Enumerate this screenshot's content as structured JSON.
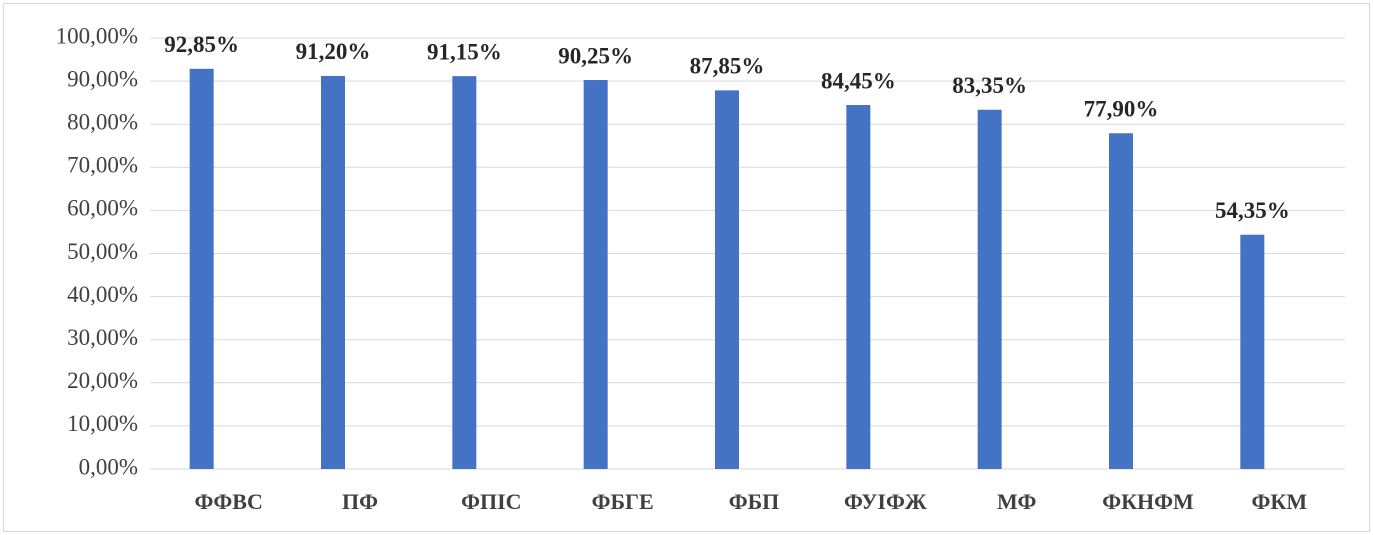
{
  "chart_data": {
    "type": "bar",
    "categories": [
      "ФФВС",
      "ПФ",
      "ФПІС",
      "ФБГЕ",
      "ФБП",
      "ФУІФЖ",
      "МФ",
      "ФКНФМ",
      "ФКМ"
    ],
    "values": [
      92.85,
      91.2,
      91.15,
      90.25,
      87.85,
      84.45,
      83.35,
      77.9,
      54.35
    ],
    "value_labels": [
      "92,85%",
      "91,20%",
      "91,15%",
      "90,25%",
      "87,85%",
      "84,45%",
      "83,35%",
      "77,90%",
      "54,35%"
    ],
    "color": "#4472c4",
    "ylim": [
      0,
      100
    ],
    "yticks": [
      {
        "value": 0,
        "label": "0,00%"
      },
      {
        "value": 10,
        "label": "10,00%"
      },
      {
        "value": 20,
        "label": "20,00%"
      },
      {
        "value": 30,
        "label": "30,00%"
      },
      {
        "value": 40,
        "label": "40,00%"
      },
      {
        "value": 50,
        "label": "50,00%"
      },
      {
        "value": 60,
        "label": "60,00%"
      },
      {
        "value": 70,
        "label": "70,00%"
      },
      {
        "value": 80,
        "label": "80,00%"
      },
      {
        "value": 90,
        "label": "90,00%"
      },
      {
        "value": 100,
        "label": "100,00%"
      }
    ],
    "grid": true
  }
}
